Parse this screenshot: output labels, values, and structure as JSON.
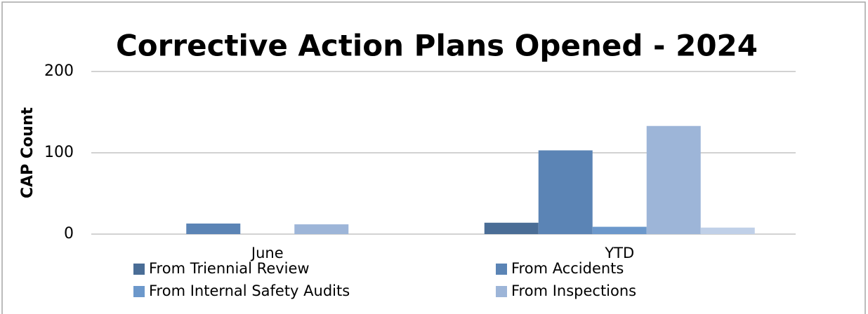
{
  "chart_data": {
    "type": "bar",
    "title": "Corrective Action Plans Opened - 2024",
    "y_label": "CAP Count",
    "categories": [
      "June",
      "YTD"
    ],
    "series": [
      {
        "name": "From Triennial Review",
        "color": "#4a6d96",
        "values": [
          0,
          14
        ]
      },
      {
        "name": "From Accidents",
        "color": "#5b84b5",
        "values": [
          13,
          103
        ]
      },
      {
        "name": "From Internal Safety Audits",
        "color": "#6c98cb",
        "values": [
          0,
          9
        ]
      },
      {
        "name": "From Inspections",
        "color": "#9db5d8",
        "values": [
          12,
          133
        ]
      },
      {
        "color": "#c0d0e8",
        "values": [
          0,
          8
        ]
      }
    ],
    "ylim": [
      0,
      200
    ],
    "yticks": [
      0,
      100,
      200
    ],
    "grid": true
  }
}
